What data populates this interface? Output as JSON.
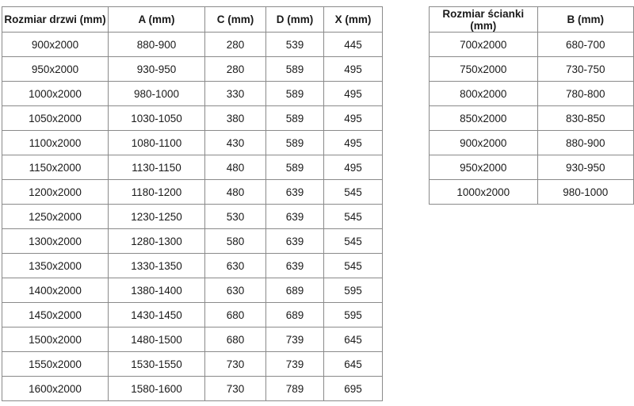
{
  "door_table": {
    "headers": [
      "Rozmiar drzwi (mm)",
      "A (mm)",
      "C (mm)",
      "D (mm)",
      "X (mm)"
    ],
    "rows": [
      [
        "900x2000",
        "880-900",
        "280",
        "539",
        "445"
      ],
      [
        "950x2000",
        "930-950",
        "280",
        "589",
        "495"
      ],
      [
        "1000x2000",
        "980-1000",
        "330",
        "589",
        "495"
      ],
      [
        "1050x2000",
        "1030-1050",
        "380",
        "589",
        "495"
      ],
      [
        "1100x2000",
        "1080-1100",
        "430",
        "589",
        "495"
      ],
      [
        "1150x2000",
        "1130-1150",
        "480",
        "589",
        "495"
      ],
      [
        "1200x2000",
        "1180-1200",
        "480",
        "639",
        "545"
      ],
      [
        "1250x2000",
        "1230-1250",
        "530",
        "639",
        "545"
      ],
      [
        "1300x2000",
        "1280-1300",
        "580",
        "639",
        "545"
      ],
      [
        "1350x2000",
        "1330-1350",
        "630",
        "639",
        "545"
      ],
      [
        "1400x2000",
        "1380-1400",
        "630",
        "689",
        "595"
      ],
      [
        "1450x2000",
        "1430-1450",
        "680",
        "689",
        "595"
      ],
      [
        "1500x2000",
        "1480-1500",
        "680",
        "739",
        "645"
      ],
      [
        "1550x2000",
        "1530-1550",
        "730",
        "739",
        "645"
      ],
      [
        "1600x2000",
        "1580-1600",
        "730",
        "789",
        "695"
      ]
    ]
  },
  "wall_table": {
    "headers": [
      "Rozmiar ścianki (mm)",
      "B (mm)"
    ],
    "rows": [
      [
        "700x2000",
        "680-700"
      ],
      [
        "750x2000",
        "730-750"
      ],
      [
        "800x2000",
        "780-800"
      ],
      [
        "850x2000",
        "830-850"
      ],
      [
        "900x2000",
        "880-900"
      ],
      [
        "950x2000",
        "930-950"
      ],
      [
        "1000x2000",
        "980-1000"
      ]
    ]
  }
}
